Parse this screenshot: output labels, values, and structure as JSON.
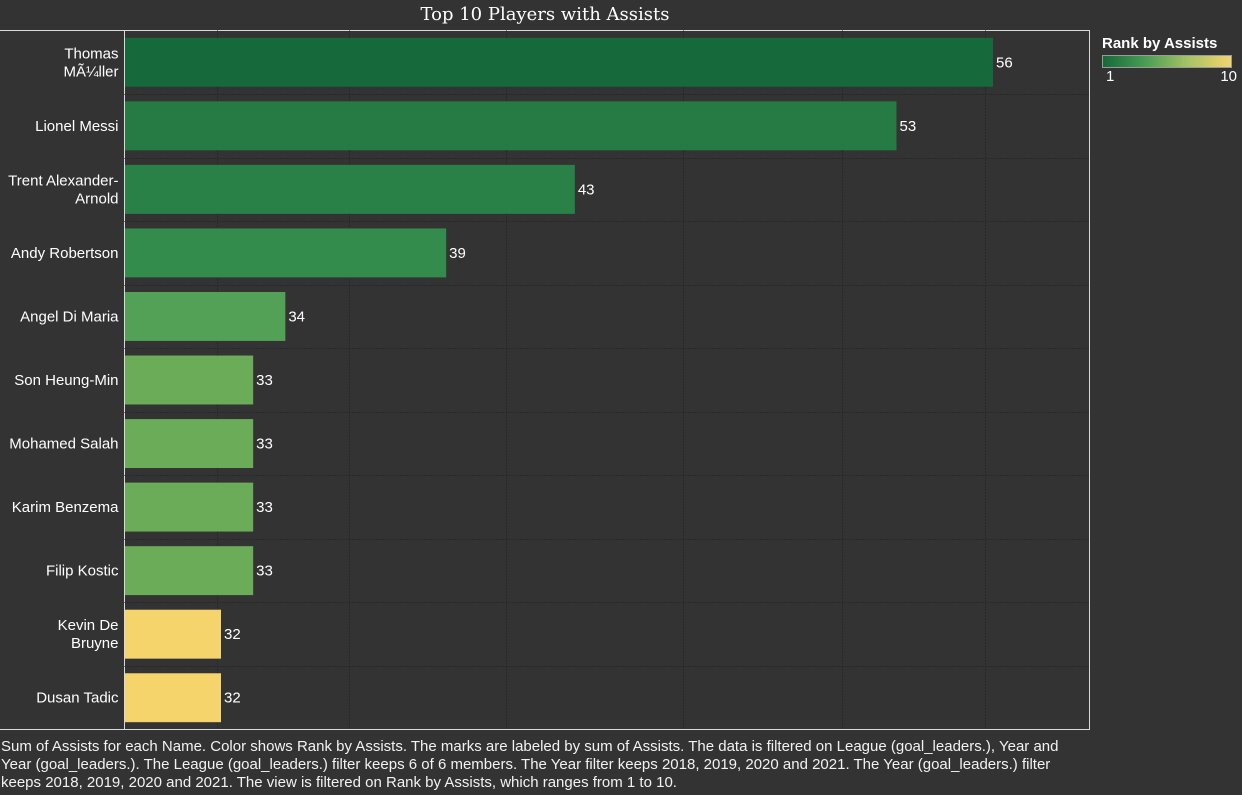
{
  "chart_data": {
    "type": "bar",
    "orientation": "horizontal",
    "title": "Top 10 Players with Assists",
    "categories": [
      [
        "Thomas",
        "MÃ¼ller"
      ],
      [
        "Lionel Messi"
      ],
      [
        "Trent Alexander-",
        "Arnold"
      ],
      [
        "Andy Robertson"
      ],
      [
        "Angel Di Maria"
      ],
      [
        "Son Heung-Min"
      ],
      [
        "Mohamed Salah"
      ],
      [
        "Karim Benzema"
      ],
      [
        "Filip Kostic"
      ],
      [
        "Kevin De",
        "Bruyne"
      ],
      [
        "Dusan Tadic"
      ]
    ],
    "values": [
      56,
      53,
      43,
      39,
      34,
      33,
      33,
      33,
      33,
      32,
      32
    ],
    "colors": [
      "#15693a",
      "#267a44",
      "#2a8147",
      "#348c4c",
      "#52a157",
      "#6bac59",
      "#6bac59",
      "#6bac59",
      "#6bac59",
      "#f5d46c",
      "#f5d46c"
    ],
    "xlim": [
      29,
      59
    ],
    "grid": true,
    "data_labels": true,
    "legend": {
      "title": "Rank by Assists",
      "min": "1",
      "max": "10",
      "placement": "top-right",
      "gradient": [
        "#15693a",
        "#4a9d55",
        "#a6c466",
        "#f5d46c"
      ]
    }
  },
  "caption": "Sum of Assists for each Name.  Color shows Rank by Assists.  The marks are labeled by sum of Assists. The data is filtered on League (goal_leaders.), Year and Year (goal_leaders.). The League (goal_leaders.) filter keeps 6 of 6 members. The Year filter keeps 2018, 2019, 2020 and 2021. The Year (goal_leaders.) filter keeps 2018, 2019, 2020 and 2021. The view is filtered on Rank by Assists, which ranges from 1 to 10."
}
